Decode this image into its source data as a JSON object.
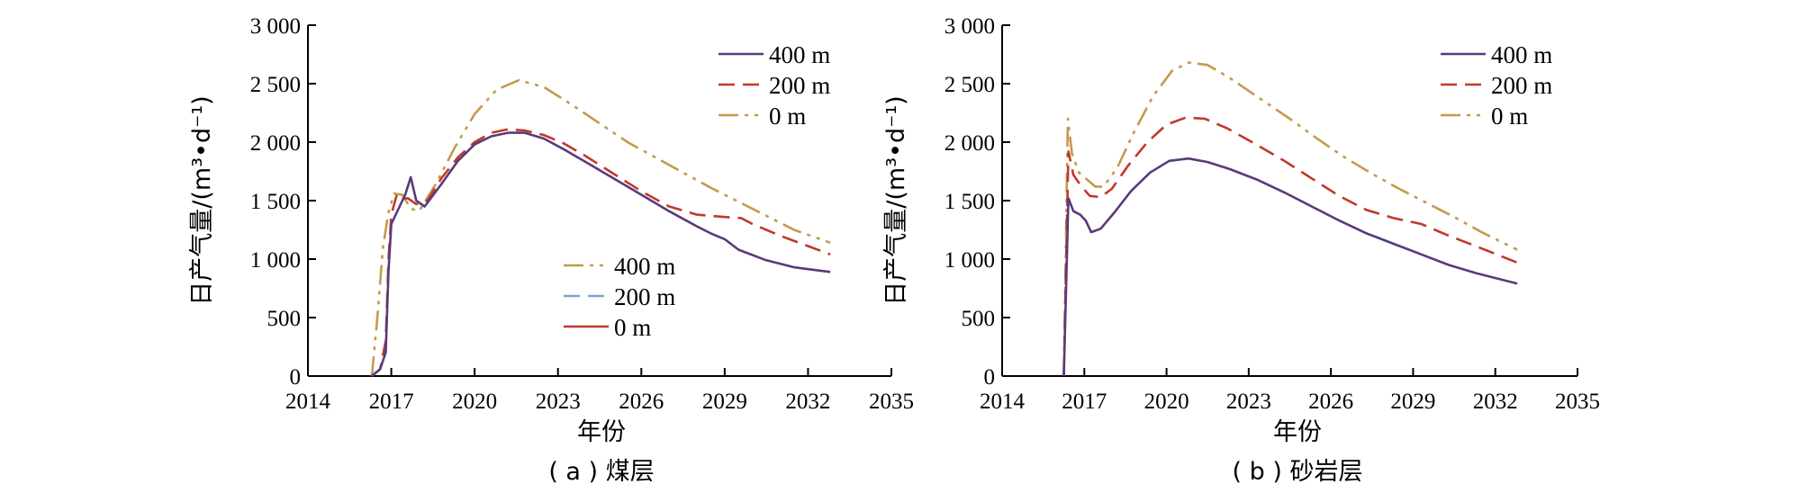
{
  "chart_data": [
    {
      "type": "line",
      "caption": "( a ) 煤层",
      "xlabel": "年份",
      "ylabel": "日产气量/(m³•d⁻¹)",
      "xlim": [
        2014,
        2035
      ],
      "ylim": [
        0,
        3000
      ],
      "xticks": [
        "2014",
        "2017",
        "2020",
        "2023",
        "2026",
        "2029",
        "2032",
        "2035"
      ],
      "yticks": [
        "0",
        "500",
        "1 000",
        "1 500",
        "2 000",
        "2 500",
        "3 000"
      ],
      "legend_top": [
        "400 m",
        "200 m",
        "0 m"
      ],
      "legend_bottom": [
        "400 m",
        "200 m",
        "0 m"
      ],
      "series": [
        {
          "name": "0 m",
          "color": "#c49a4c",
          "dash": "dashdotdot",
          "x": [
            2016.3,
            2016.5,
            2016.7,
            2016.9,
            2017.1,
            2017.4,
            2017.7,
            2018.0,
            2018.6,
            2019.3,
            2020.0,
            2020.8,
            2021.6,
            2022.5,
            2023.5,
            2024.5,
            2025.5,
            2026.5,
            2027.5,
            2028.5,
            2029.5,
            2030.5,
            2031.5,
            2032.8
          ],
          "y": [
            0,
            500,
            1100,
            1400,
            1560,
            1550,
            1430,
            1410,
            1640,
            1960,
            2240,
            2450,
            2530,
            2470,
            2320,
            2160,
            2000,
            1870,
            1740,
            1610,
            1490,
            1370,
            1250,
            1140
          ]
        },
        {
          "name": "200 m",
          "color": "#c0392b",
          "dash": "dash",
          "x": [
            2016.3,
            2016.6,
            2016.8,
            2016.9,
            2017.0,
            2017.2,
            2017.4,
            2017.6,
            2017.9,
            2018.3,
            2018.8,
            2019.4,
            2020.0,
            2020.6,
            2021.2,
            2021.8,
            2022.5,
            2023.2,
            2024.0,
            2025.0,
            2026.0,
            2027.0,
            2028.0,
            2029.0,
            2029.6,
            2030.0,
            2031.0,
            2032.8
          ],
          "y": [
            0,
            60,
            300,
            1000,
            1380,
            1550,
            1520,
            1520,
            1470,
            1500,
            1690,
            1870,
            2000,
            2080,
            2110,
            2100,
            2060,
            1990,
            1880,
            1730,
            1580,
            1450,
            1380,
            1360,
            1350,
            1300,
            1200,
            1040
          ]
        },
        {
          "name": "400 m",
          "color": "#5a3a7a",
          "dash": "solid",
          "x": [
            2016.3,
            2016.6,
            2016.8,
            2016.9,
            2017.0,
            2017.3,
            2017.5,
            2017.7,
            2017.9,
            2018.2,
            2018.8,
            2019.4,
            2020.0,
            2020.6,
            2021.2,
            2021.8,
            2022.5,
            2023.2,
            2024.0,
            2025.0,
            2026.0,
            2027.0,
            2028.0,
            2028.5,
            2029.0,
            2029.5,
            2030.5,
            2031.5,
            2032.8
          ],
          "y": [
            0,
            60,
            200,
            900,
            1300,
            1450,
            1550,
            1700,
            1500,
            1450,
            1640,
            1840,
            1980,
            2050,
            2080,
            2080,
            2030,
            1940,
            1830,
            1690,
            1550,
            1410,
            1280,
            1220,
            1170,
            1080,
            990,
            930,
            890
          ]
        }
      ]
    },
    {
      "type": "line",
      "caption": "( b ) 砂岩层",
      "xlabel": "年份",
      "ylabel": "日产气量/(m³•d⁻¹)",
      "xlim": [
        2014,
        2035
      ],
      "ylim": [
        0,
        3000
      ],
      "xticks": [
        "2014",
        "2017",
        "2020",
        "2023",
        "2026",
        "2029",
        "2032",
        "2035"
      ],
      "yticks": [
        "0",
        "500",
        "1 000",
        "1 500",
        "2 000",
        "2 500",
        "3 000"
      ],
      "legend_top": [
        "400 m",
        "200 m",
        "0 m"
      ],
      "series": [
        {
          "name": "0 m",
          "color": "#c49a4c",
          "dash": "dashdotdot",
          "x": [
            2016.25,
            2016.4,
            2016.55,
            2016.8,
            2017.1,
            2017.4,
            2017.7,
            2018.2,
            2018.8,
            2019.5,
            2020.2,
            2020.8,
            2021.5,
            2022.3,
            2023.3,
            2024.5,
            2025.5,
            2026.5,
            2027.5,
            2028.5,
            2029.5,
            2030.5,
            2031.5,
            2032.8
          ],
          "y": [
            0,
            2200,
            1900,
            1740,
            1680,
            1620,
            1620,
            1780,
            2080,
            2390,
            2610,
            2680,
            2660,
            2550,
            2390,
            2200,
            2030,
            1870,
            1730,
            1600,
            1480,
            1360,
            1230,
            1080
          ]
        },
        {
          "name": "200 m",
          "color": "#c0392b",
          "dash": "dash",
          "x": [
            2016.25,
            2016.42,
            2016.6,
            2016.9,
            2017.2,
            2017.6,
            2018.0,
            2018.6,
            2019.3,
            2020.0,
            2020.7,
            2021.4,
            2022.2,
            2023.2,
            2024.3,
            2025.3,
            2026.3,
            2027.3,
            2028.3,
            2029.3,
            2030.3,
            2031.3,
            2032.8
          ],
          "y": [
            0,
            1920,
            1720,
            1620,
            1540,
            1530,
            1600,
            1800,
            2000,
            2150,
            2210,
            2200,
            2120,
            1990,
            1840,
            1690,
            1540,
            1420,
            1350,
            1300,
            1200,
            1110,
            970
          ]
        },
        {
          "name": "400 m",
          "color": "#5a3a7a",
          "dash": "solid",
          "x": [
            2016.25,
            2016.42,
            2016.6,
            2016.85,
            2017.05,
            2017.25,
            2017.6,
            2018.1,
            2018.7,
            2019.4,
            2020.1,
            2020.8,
            2021.5,
            2022.3,
            2023.3,
            2024.3,
            2025.3,
            2026.3,
            2027.3,
            2028.3,
            2029.3,
            2030.3,
            2031.3,
            2032.8
          ],
          "y": [
            0,
            1520,
            1410,
            1380,
            1330,
            1230,
            1260,
            1400,
            1580,
            1740,
            1840,
            1860,
            1830,
            1770,
            1680,
            1570,
            1450,
            1330,
            1220,
            1130,
            1040,
            950,
            880,
            790
          ]
        }
      ]
    }
  ]
}
